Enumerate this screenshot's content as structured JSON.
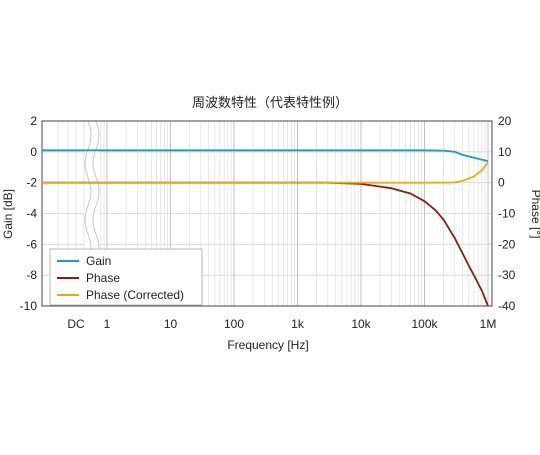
{
  "chart_data": {
    "type": "line",
    "title": "周波数特性（代表特性例）",
    "xlabel": "Frequency [Hz]",
    "ylabel_left": "Gain [dB]",
    "ylabel_right": "Phase [°]",
    "x_scale": "log",
    "x_ticks": [
      "DC",
      "1",
      "10",
      "100",
      "1k",
      "10k",
      "100k",
      "1M"
    ],
    "x_tick_values": [
      null,
      1,
      10,
      100,
      1000,
      10000,
      100000,
      1000000
    ],
    "ylim_left": [
      -10,
      2
    ],
    "yticks_left": [
      "2",
      "0",
      "-2",
      "-4",
      "-6",
      "-8",
      "-10"
    ],
    "ylim_right": [
      -40,
      20
    ],
    "yticks_right": [
      "20",
      "10",
      "0",
      "-10",
      "-20",
      "-30",
      "-40"
    ],
    "grid": true,
    "legend_position": "bottom-left",
    "series": [
      {
        "name": "Gain",
        "axis": "left",
        "color": "#1a9bd1",
        "points": [
          [
            "DC",
            0.1
          ],
          [
            1,
            0.1
          ],
          [
            10,
            0.1
          ],
          [
            100,
            0.1
          ],
          [
            1000,
            0.1
          ],
          [
            10000,
            0.1
          ],
          [
            100000,
            0.1
          ],
          [
            200000,
            0.08
          ],
          [
            300000,
            0.0
          ],
          [
            400000,
            -0.2
          ],
          [
            500000,
            -0.3
          ],
          [
            700000,
            -0.45
          ],
          [
            1000000,
            -0.6
          ]
        ]
      },
      {
        "name": "Phase",
        "axis": "right",
        "color": "#8b1a1a",
        "points": [
          [
            "DC",
            0
          ],
          [
            1,
            0
          ],
          [
            10,
            0
          ],
          [
            100,
            0
          ],
          [
            1000,
            0
          ],
          [
            3000,
            0
          ],
          [
            10000,
            -0.4
          ],
          [
            30000,
            -1.8
          ],
          [
            60000,
            -3.5
          ],
          [
            100000,
            -6
          ],
          [
            150000,
            -9
          ],
          [
            200000,
            -12
          ],
          [
            300000,
            -18
          ],
          [
            400000,
            -23
          ],
          [
            500000,
            -27
          ],
          [
            600000,
            -30
          ],
          [
            800000,
            -35
          ],
          [
            1000000,
            -40
          ]
        ]
      },
      {
        "name": "Phase (Corrected)",
        "axis": "right",
        "color": "#e8a91b",
        "points": [
          [
            "DC",
            0
          ],
          [
            1,
            0
          ],
          [
            10,
            0
          ],
          [
            100,
            0
          ],
          [
            1000,
            0
          ],
          [
            10000,
            0
          ],
          [
            100000,
            0
          ],
          [
            200000,
            0
          ],
          [
            300000,
            0.1
          ],
          [
            400000,
            0.6
          ],
          [
            600000,
            2
          ],
          [
            800000,
            4
          ],
          [
            1000000,
            6.5
          ]
        ]
      }
    ]
  }
}
